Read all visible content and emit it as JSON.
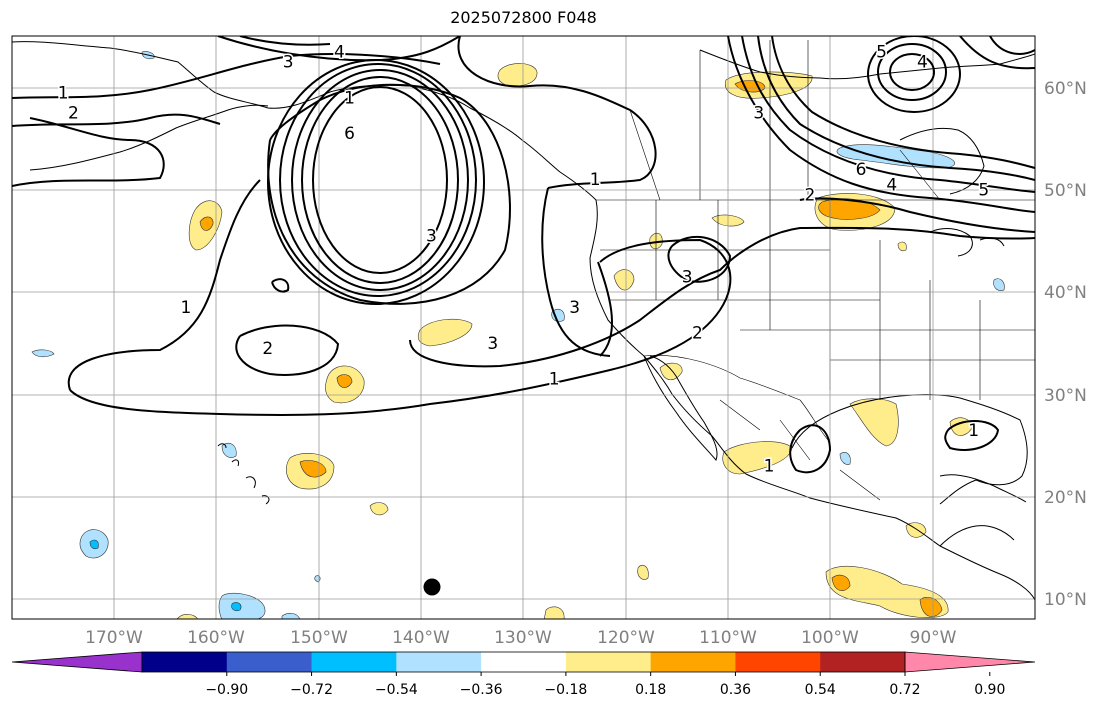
{
  "title": "2025072800 F048",
  "map": {
    "projection": "plate-carree",
    "extent": {
      "lon_min": -180,
      "lon_max": -80,
      "lat_min": 8,
      "lat_max": 65
    },
    "graticule_step_deg": 10,
    "gridlines": true,
    "lon_labels": [
      "170°W",
      "160°W",
      "150°W",
      "140°W",
      "130°W",
      "120°W",
      "110°W",
      "100°W",
      "90°W"
    ],
    "lat_labels": [
      "10°N",
      "20°N",
      "30°N",
      "40°N",
      "50°N",
      "60°N"
    ],
    "contour_color": "#000000",
    "contour_labels": [
      {
        "text": "1",
        "lon": -175,
        "lat": 59.5
      },
      {
        "text": "2",
        "lon": -174,
        "lat": 57.5
      },
      {
        "text": "3",
        "lon": -153,
        "lat": 62.5
      },
      {
        "text": "4",
        "lon": -148,
        "lat": 63.5
      },
      {
        "text": "1",
        "lon": -147,
        "lat": 59
      },
      {
        "text": "6",
        "lon": -147,
        "lat": 55.5
      },
      {
        "text": "3",
        "lon": -139,
        "lat": 45.5
      },
      {
        "text": "1",
        "lon": -163,
        "lat": 38.5
      },
      {
        "text": "2",
        "lon": -155,
        "lat": 34.5
      },
      {
        "text": "3",
        "lon": -133,
        "lat": 35
      },
      {
        "text": "1",
        "lon": -127,
        "lat": 31.5
      },
      {
        "text": "1",
        "lon": -123,
        "lat": 51
      },
      {
        "text": "3",
        "lon": -125,
        "lat": 38.5
      },
      {
        "text": "3",
        "lon": -114,
        "lat": 41.5
      },
      {
        "text": "2",
        "lon": -113,
        "lat": 36
      },
      {
        "text": "3",
        "lon": -107,
        "lat": 57.5
      },
      {
        "text": "2",
        "lon": -102,
        "lat": 49.5
      },
      {
        "text": "6",
        "lon": -97,
        "lat": 52
      },
      {
        "text": "4",
        "lon": -94,
        "lat": 50.5
      },
      {
        "text": "5",
        "lon": -85,
        "lat": 50
      },
      {
        "text": "5",
        "lon": -95,
        "lat": 63.5
      },
      {
        "text": "4",
        "lon": -91,
        "lat": 62.5
      },
      {
        "text": "1",
        "lon": -106,
        "lat": 23
      },
      {
        "text": "1",
        "lon": -86,
        "lat": 26.5
      }
    ],
    "marker": {
      "name": "storm-position",
      "lon": -138.5,
      "lat": 11,
      "color": "#000000"
    }
  },
  "colorbar": {
    "colors": [
      "#9932CC",
      "#00008B",
      "#3A5FCD",
      "#00BFFF",
      "#B0E2FF",
      "#FFFFFF",
      "#FFEC8B",
      "#FFA500",
      "#FF4500",
      "#B22222",
      "#FF88AA"
    ],
    "tick_labels": [
      "−0.90",
      "−0.72",
      "−0.54",
      "−0.36",
      "−0.18",
      "0.18",
      "0.36",
      "0.54",
      "0.72",
      "0.90"
    ],
    "extend": "both"
  }
}
